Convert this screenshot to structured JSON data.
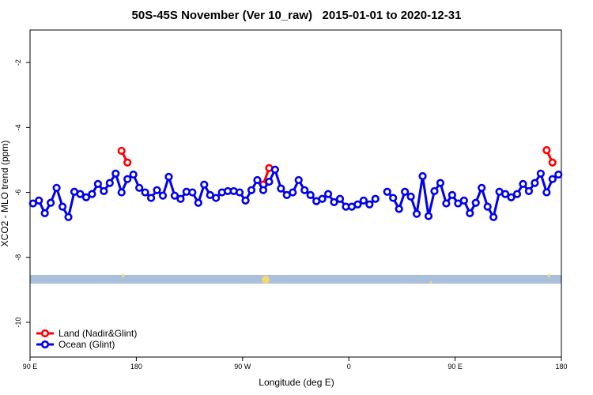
{
  "chart_data": {
    "type": "line",
    "title": "50S-45S November (Ver 10_raw)   2015-01-01 to 2020-12-31",
    "x_label": "Longitude (deg E)",
    "y_label": "XCO2 - MLO trend (ppm)",
    "xlim": [
      90,
      540
    ],
    "ylim": [
      -11.07,
      -1.0
    ],
    "xticks": [
      {
        "value": 90,
        "label": "90 E"
      },
      180,
      {
        "value": 270,
        "label": "90 W"
      },
      {
        "value": 360,
        "label": "0"
      },
      {
        "value": 450,
        "label": "90 E"
      },
      {
        "value": 540,
        "label": "180"
      }
    ],
    "yticks": [
      -2,
      -4,
      -6,
      -8,
      -10
    ],
    "legend": "bottomleft",
    "x": [
      92.5,
      97.5,
      102.5,
      107.5,
      112.5,
      117.5,
      122.5,
      127.5,
      132.5,
      137.5,
      142.5,
      147.5,
      152.5,
      157.5,
      162.5,
      167.5,
      172.5,
      177.5,
      182.5,
      187.5,
      192.5,
      197.5,
      202.5,
      207.5,
      212.5,
      217.5,
      222.5,
      227.5,
      232.5,
      237.5,
      242.5,
      247.5,
      252.5,
      257.5,
      262.5,
      267.5,
      272.5,
      277.5,
      282.5,
      287.5,
      292.5,
      297.5,
      302.5,
      307.5,
      312.5,
      317.5,
      322.5,
      327.5,
      332.5,
      337.5,
      342.5,
      347.5,
      352.5,
      357.5,
      362.5,
      367.5,
      372.5,
      377.5,
      382.5,
      387.5,
      392.5,
      397.5,
      402.5,
      407.5,
      412.5,
      417.5,
      422.5,
      427.5,
      432.5,
      437.5,
      442.5,
      447.5,
      452.5,
      457.5,
      462.5,
      467.5,
      472.5,
      477.5,
      482.5,
      487.5,
      492.5,
      497.5,
      502.5,
      507.5,
      512.5,
      517.5,
      522.5,
      527.5,
      532.5,
      537.5
    ],
    "series": [
      {
        "name": "Land (Nadir&Glint)",
        "color": "#ff0000",
        "values": [
          null,
          null,
          null,
          null,
          null,
          null,
          null,
          null,
          null,
          null,
          null,
          null,
          null,
          null,
          null,
          -4.72,
          -5.08,
          null,
          null,
          null,
          null,
          null,
          null,
          null,
          null,
          null,
          null,
          null,
          null,
          null,
          null,
          null,
          null,
          null,
          null,
          null,
          null,
          null,
          null,
          -5.76,
          -5.25,
          null,
          null,
          null,
          null,
          null,
          null,
          null,
          null,
          null,
          null,
          null,
          null,
          null,
          null,
          null,
          null,
          null,
          null,
          null,
          null,
          null,
          null,
          null,
          null,
          null,
          null,
          null,
          null,
          null,
          null,
          null,
          null,
          null,
          null,
          null,
          null,
          null,
          null,
          null,
          null,
          null,
          null,
          null,
          null,
          null,
          null,
          -4.7,
          -5.08,
          null
        ]
      },
      {
        "name": "Ocean (Glint)",
        "color": "#0000ee",
        "values": [
          -6.34,
          -6.25,
          -6.64,
          -6.32,
          -5.86,
          -6.44,
          -6.76,
          -5.98,
          -6.05,
          -6.15,
          -6.05,
          -5.74,
          -5.96,
          -5.71,
          -5.42,
          -6.0,
          -5.59,
          -5.45,
          -5.86,
          -6.0,
          -6.17,
          -5.93,
          -6.1,
          -5.52,
          -6.1,
          -6.2,
          -5.98,
          -6.0,
          -6.32,
          -5.76,
          -6.08,
          -6.17,
          -6.0,
          -5.96,
          -5.96,
          -6.0,
          -6.25,
          -5.93,
          -5.62,
          -5.93,
          -5.67,
          -5.3,
          -5.88,
          -6.08,
          -6.0,
          -5.62,
          -5.93,
          -6.08,
          -6.27,
          -6.2,
          -6.05,
          -6.3,
          -6.2,
          -6.44,
          -6.44,
          -6.37,
          -6.25,
          -6.37,
          -6.2,
          null,
          -5.98,
          -6.17,
          -6.51,
          -5.98,
          -6.13,
          -6.66,
          -5.5,
          -6.73,
          -5.96,
          -5.71,
          -6.34,
          -6.08,
          -6.34,
          -6.25,
          -6.64,
          -6.32,
          -5.86,
          -6.44,
          -6.76,
          -5.98,
          -6.05,
          -6.15,
          -6.05,
          -5.74,
          -5.96,
          -5.71,
          -5.42,
          -6.0,
          -5.59,
          -5.45
        ]
      }
    ]
  }
}
